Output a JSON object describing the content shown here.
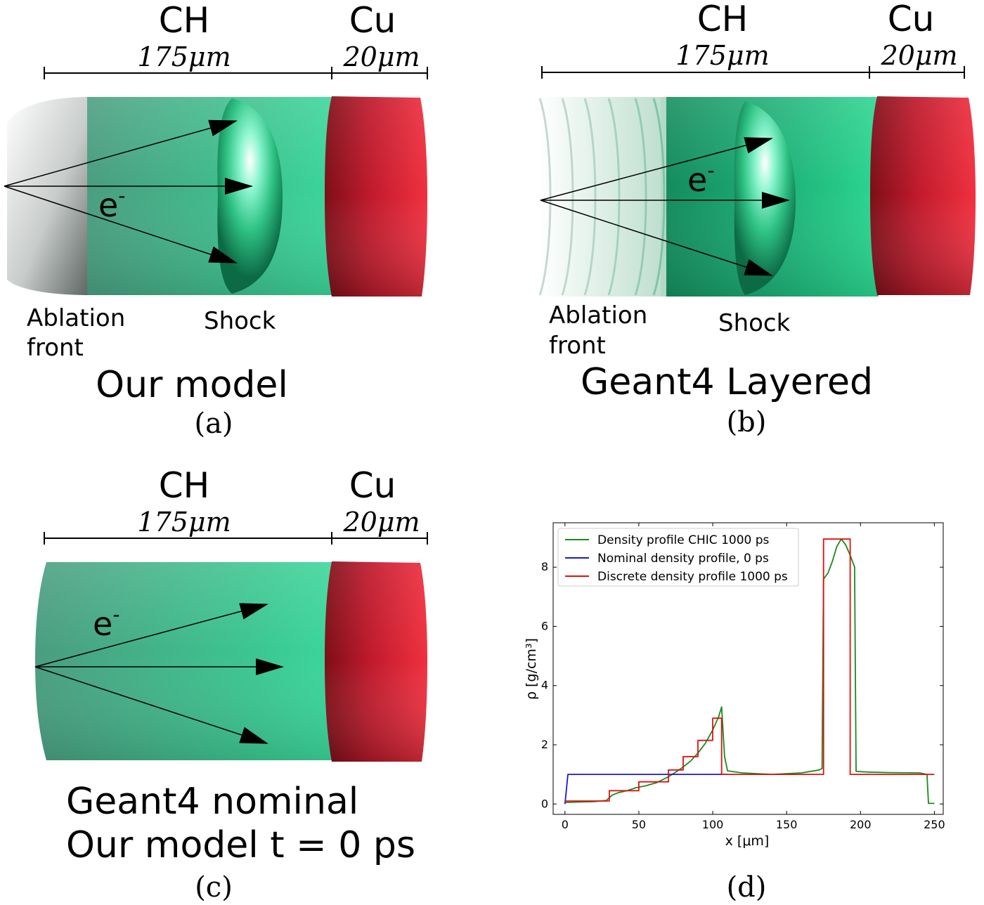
{
  "panels": {
    "a": {
      "ch_label": "CH",
      "ch_thickness": "175μm",
      "cu_label": "Cu",
      "cu_thickness": "20μm",
      "electron": "e",
      "electron_sup": "-",
      "ablation_line1": "Ablation",
      "ablation_line2": "front",
      "shock": "Shock",
      "title": "Our model",
      "caption": "(a)"
    },
    "b": {
      "ch_label": "CH",
      "ch_thickness": "175μm",
      "cu_label": "Cu",
      "cu_thickness": "20μm",
      "electron": "e",
      "electron_sup": "-",
      "ablation_line1": "Ablation",
      "ablation_line2": "front",
      "shock": "Shock",
      "title": "Geant4 Layered",
      "caption": "(b)"
    },
    "c": {
      "ch_label": "CH",
      "ch_thickness": "175μm",
      "cu_label": "Cu",
      "cu_thickness": "20μm",
      "electron": "e",
      "electron_sup": "-",
      "title_line1": "Geant4 nominal",
      "title_line2": "Our model t = 0 ps",
      "caption": "(c)"
    },
    "d": {
      "caption": "(d)"
    }
  },
  "colors": {
    "ch_green": "#3fc392",
    "cu_red": "#d81e34",
    "chic": "#1a8a1a",
    "nominal": "#1a1acc",
    "discrete": "#e01010"
  },
  "chart_data": {
    "type": "line",
    "xlabel": "x [μm]",
    "ylabel": "ρ [g/cm³]",
    "xlim": [
      -8,
      256
    ],
    "ylim": [
      -0.35,
      9.5
    ],
    "xticks": [
      0,
      50,
      100,
      150,
      200,
      250
    ],
    "yticks": [
      0,
      2,
      4,
      6,
      8
    ],
    "legend_position": "top-left",
    "series": [
      {
        "name": "Density profile CHIC 1000 ps",
        "color": "#1a8a1a",
        "points": [
          [
            0,
            0.05
          ],
          [
            10,
            0.07
          ],
          [
            20,
            0.08
          ],
          [
            28,
            0.12
          ],
          [
            32,
            0.3
          ],
          [
            36,
            0.38
          ],
          [
            42,
            0.45
          ],
          [
            48,
            0.55
          ],
          [
            55,
            0.62
          ],
          [
            62,
            0.72
          ],
          [
            70,
            0.92
          ],
          [
            75,
            1.08
          ],
          [
            80,
            1.25
          ],
          [
            85,
            1.45
          ],
          [
            90,
            1.72
          ],
          [
            95,
            2.05
          ],
          [
            100,
            2.5
          ],
          [
            104,
            2.95
          ],
          [
            106,
            3.28
          ],
          [
            108,
            1.6
          ],
          [
            110,
            1.12
          ],
          [
            120,
            1.05
          ],
          [
            140,
            1.0
          ],
          [
            160,
            1.05
          ],
          [
            172,
            1.15
          ],
          [
            174,
            1.2
          ],
          [
            175,
            7.6
          ],
          [
            178,
            7.8
          ],
          [
            181,
            8.2
          ],
          [
            184,
            8.7
          ],
          [
            187,
            8.95
          ],
          [
            190,
            8.75
          ],
          [
            193,
            8.4
          ],
          [
            196,
            8.0
          ],
          [
            197,
            1.1
          ],
          [
            205,
            1.08
          ],
          [
            220,
            1.06
          ],
          [
            240,
            1.05
          ],
          [
            245,
            1.0
          ],
          [
            246,
            0.02
          ],
          [
            250,
            0.02
          ]
        ]
      },
      {
        "name": "Nominal density profile, 0 ps",
        "color": "#1a1acc",
        "points": [
          [
            0,
            0
          ],
          [
            2,
            1.0
          ],
          [
            110,
            1.0
          ]
        ]
      },
      {
        "name": "Discrete density profile 1000 ps",
        "color": "#e01010",
        "points": [
          [
            0,
            0.1
          ],
          [
            30,
            0.1
          ],
          [
            30,
            0.45
          ],
          [
            50,
            0.45
          ],
          [
            50,
            0.75
          ],
          [
            70,
            0.75
          ],
          [
            70,
            1.15
          ],
          [
            80,
            1.15
          ],
          [
            80,
            1.6
          ],
          [
            90,
            1.6
          ],
          [
            90,
            2.15
          ],
          [
            100,
            2.15
          ],
          [
            100,
            2.9
          ],
          [
            106,
            2.9
          ],
          [
            106,
            1.0
          ],
          [
            175,
            1.0
          ],
          [
            175,
            8.95
          ],
          [
            193,
            8.95
          ],
          [
            193,
            1.0
          ],
          [
            250,
            1.0
          ]
        ]
      }
    ]
  }
}
